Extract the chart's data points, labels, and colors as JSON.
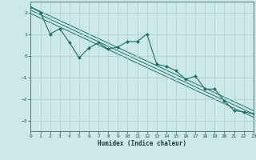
{
  "xlabel": "Humidex (Indice chaleur)",
  "xlim": [
    0,
    23
  ],
  "ylim": [
    -3.5,
    2.5
  ],
  "yticks": [
    -3,
    -2,
    -1,
    0,
    1,
    2
  ],
  "xticks": [
    0,
    1,
    2,
    3,
    4,
    5,
    6,
    7,
    8,
    9,
    10,
    11,
    12,
    13,
    14,
    15,
    16,
    17,
    18,
    19,
    20,
    21,
    22,
    23
  ],
  "bg_color": "#cce8e8",
  "grid_color": "#aacece",
  "line_color": "#1a6e64",
  "marker_color": "#1a6e64",
  "data_line_x": [
    0,
    1,
    2,
    3,
    4,
    5,
    6,
    7,
    8,
    9,
    10,
    11,
    12,
    13,
    14,
    15,
    16,
    17,
    18,
    19,
    20,
    21,
    22,
    23
  ],
  "data_line_y": [
    2.25,
    2.0,
    1.0,
    1.25,
    0.6,
    -0.1,
    0.35,
    0.6,
    0.3,
    0.4,
    0.65,
    0.65,
    1.0,
    -0.4,
    -0.5,
    -0.7,
    -1.1,
    -0.95,
    -1.55,
    -1.55,
    -2.1,
    -2.55,
    -2.6,
    -2.7
  ],
  "regression_lines": [
    {
      "x": [
        0,
        23
      ],
      "y": [
        2.25,
        -2.55
      ]
    },
    {
      "x": [
        0,
        23
      ],
      "y": [
        2.1,
        -2.7
      ]
    },
    {
      "x": [
        0,
        23
      ],
      "y": [
        1.95,
        -2.85
      ]
    }
  ]
}
